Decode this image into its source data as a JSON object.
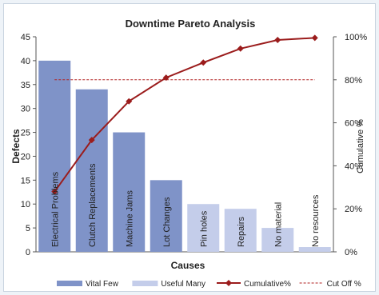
{
  "chart_data": {
    "type": "bar",
    "title": "Downtime Pareto Analysis",
    "xlabel": "Causes",
    "ylabel": "Defects",
    "y2label": "Cumulative %",
    "ylim": [
      0,
      45
    ],
    "y2lim": [
      0,
      100
    ],
    "yticks": [
      "0",
      "5",
      "10",
      "15",
      "20",
      "25",
      "30",
      "35",
      "40",
      "45"
    ],
    "y2ticks": [
      "0%",
      "20%",
      "40%",
      "60%",
      "80%",
      "100%"
    ],
    "categories": [
      "Electrical Problems",
      "Clutch Replacements",
      "Machine Jams",
      "Lot Changes",
      "Pin holes",
      "Repairs",
      "No material",
      "No resources"
    ],
    "series": [
      {
        "name": "Vital Few",
        "values": [
          40,
          34,
          25,
          15,
          null,
          null,
          null,
          null
        ],
        "color": "#7f93c8"
      },
      {
        "name": "Useful Many",
        "values": [
          null,
          null,
          null,
          null,
          10,
          9,
          5,
          1
        ],
        "color": "#c4cdea"
      },
      {
        "name": "Cumulative%",
        "values": [
          28,
          52,
          70,
          81,
          88,
          94.5,
          98.5,
          99.5
        ],
        "color": "#9b1c1c"
      },
      {
        "name": "Cut Off %",
        "values": [
          80,
          80,
          80,
          80,
          80,
          80,
          80,
          80
        ],
        "color": "#b22222"
      }
    ],
    "legend_position": "bottom",
    "grid": false
  }
}
